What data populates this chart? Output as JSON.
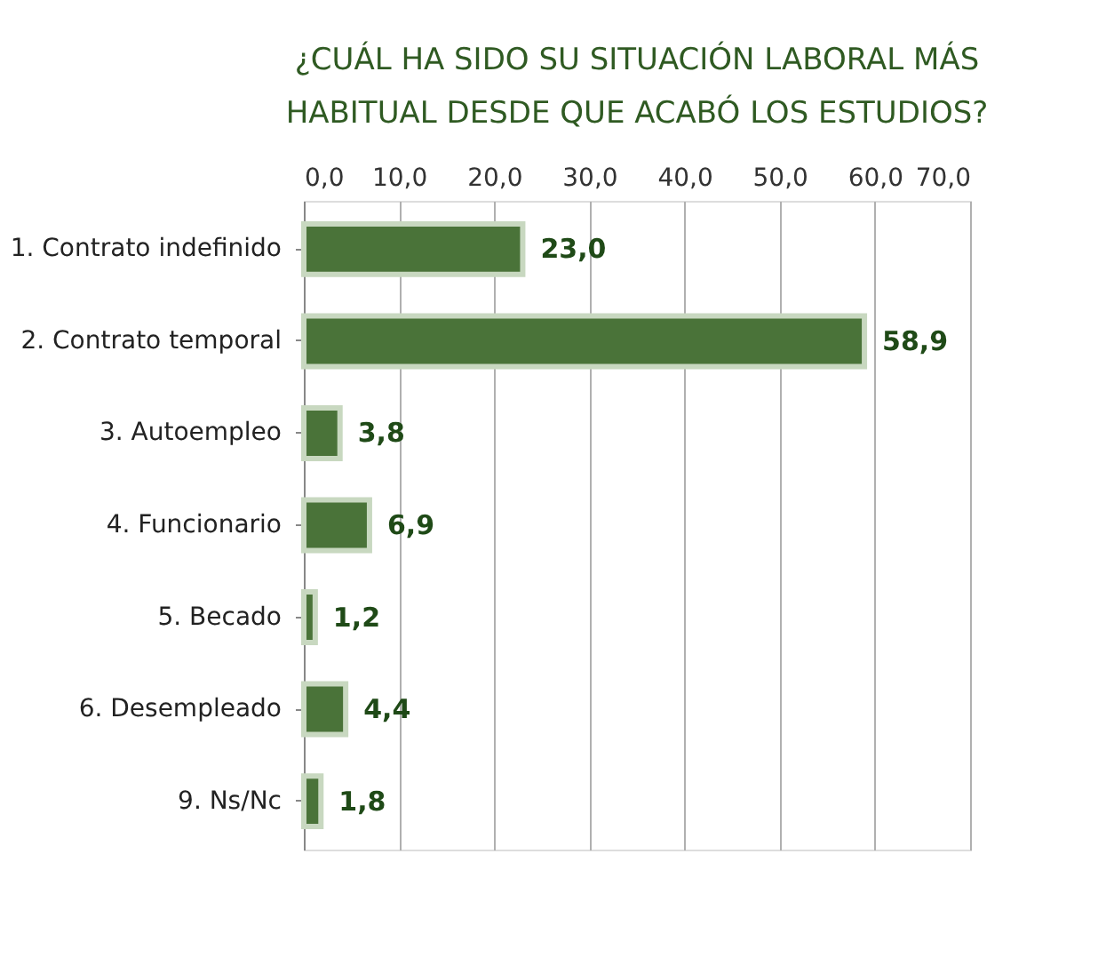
{
  "chart_data": {
    "type": "bar",
    "orientation": "horizontal",
    "title": "¿CUÁL HA SIDO SU SITUACIÓN LABORAL MÁS HABITUAL DESDE QUE ACABÓ LOS ESTUDIOS?",
    "categories": [
      "1. Contrato indefinido",
      "2. Contrato temporal",
      "3. Autoempleo",
      "4. Funcionario",
      "5. Becado",
      "6. Desempleado",
      "9. Ns/Nc"
    ],
    "values": [
      23.0,
      58.9,
      3.8,
      6.9,
      1.2,
      4.4,
      1.8
    ],
    "value_labels": [
      "23,0",
      "58,9",
      "3,8",
      "6,9",
      "1,2",
      "4,4",
      "1,8"
    ],
    "color": "#4a7339",
    "xlim": [
      0,
      70
    ],
    "xticks": [
      {
        "value": 0,
        "label": "0,0"
      },
      {
        "value": 10,
        "label": "10,0"
      },
      {
        "value": 20,
        "label": "20,0"
      },
      {
        "value": 30,
        "label": "30,0"
      },
      {
        "value": 40,
        "label": "40,0"
      },
      {
        "value": 50,
        "label": "50,0"
      },
      {
        "value": 60,
        "label": "60,0"
      },
      {
        "value": 70,
        "label": "70,0"
      }
    ],
    "grid": "x"
  }
}
